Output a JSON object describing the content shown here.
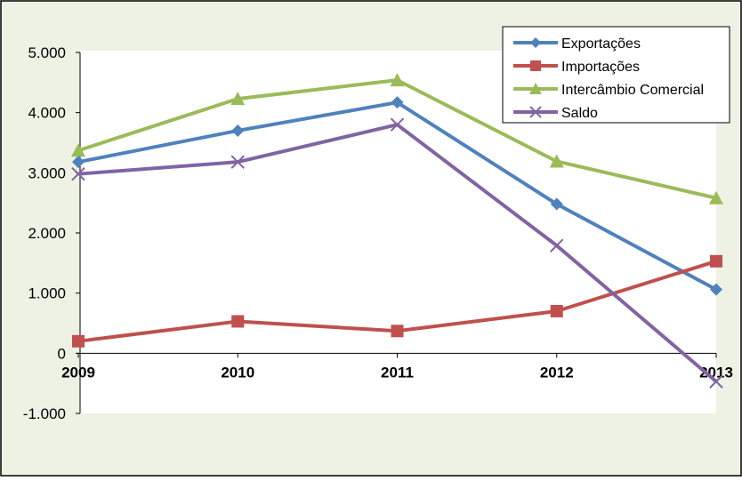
{
  "chart_data": {
    "type": "line",
    "categories": [
      "2009",
      "2010",
      "2011",
      "2012",
      "2013"
    ],
    "series": [
      {
        "name": "Exportações",
        "values": [
          3180,
          3700,
          4170,
          2480,
          1060
        ],
        "color": "#4F81BD",
        "marker": "diamond"
      },
      {
        "name": "Importações",
        "values": [
          200,
          530,
          370,
          700,
          1530
        ],
        "color": "#C0504D",
        "marker": "square"
      },
      {
        "name": "Intercâmbio Comercial",
        "values": [
          3370,
          4230,
          4540,
          3190,
          2580
        ],
        "color": "#9BBB59",
        "marker": "triangle"
      },
      {
        "name": "Saldo",
        "values": [
          2980,
          3180,
          3800,
          1790,
          -470
        ],
        "color": "#8064A2",
        "marker": "x"
      }
    ],
    "ylim": [
      -1000,
      5000
    ],
    "yticks": [
      -1000,
      0,
      1000,
      2000,
      3000,
      4000,
      5000
    ],
    "ytick_labels": [
      "-1.000",
      "0",
      "1.000",
      "2.000",
      "3.000",
      "4.000",
      "5.000"
    ],
    "grid": false,
    "legend_position": "top-right",
    "background_color": "#EEF2E4",
    "plot_background_color": "#FFFFFF"
  }
}
